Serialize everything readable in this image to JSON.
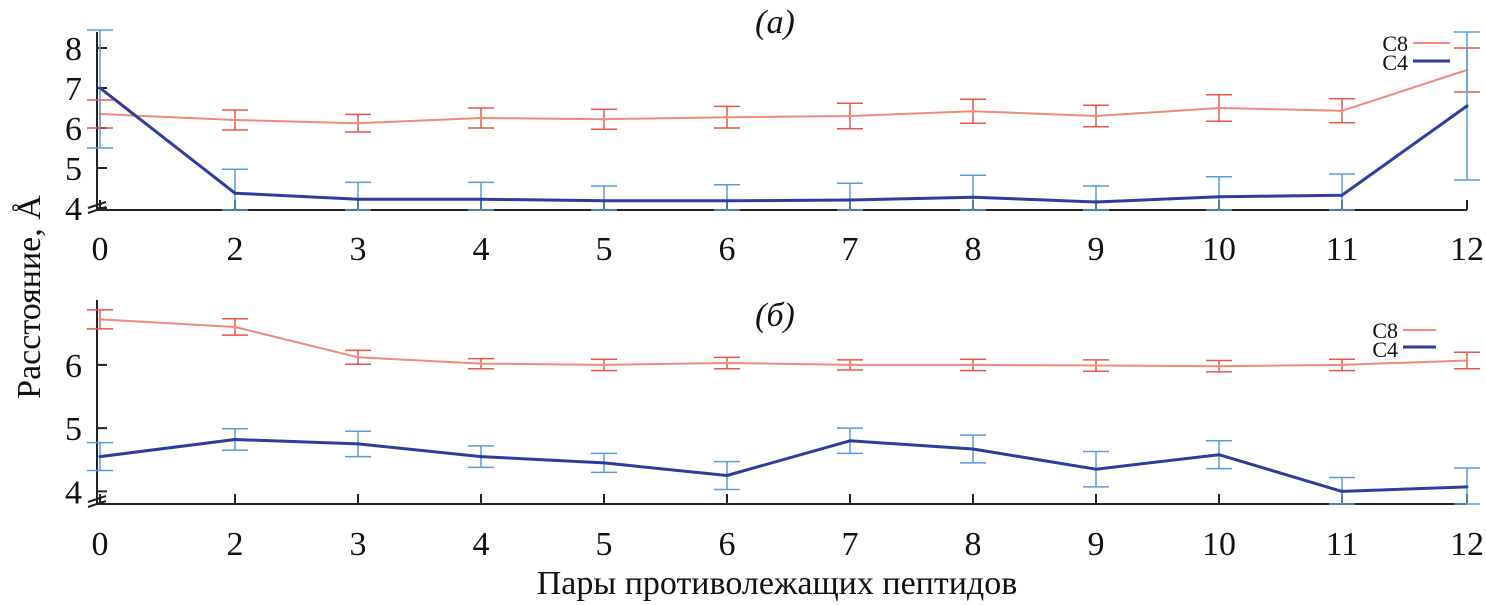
{
  "chart_data": {
    "type": "line",
    "xlabel": "Пары противолежащих пептидов",
    "ylabel": "Расстояние, Å",
    "categories": [
      "0",
      "2",
      "3",
      "4",
      "5",
      "6",
      "7",
      "8",
      "9",
      "10",
      "11",
      "12"
    ],
    "colors": {
      "C8": "#f08a7a",
      "C4": "#2e3d9c",
      "C8_err": "#e8564a",
      "C4_err": "#5a9ad8",
      "axis": "#222222"
    },
    "legend_placement": "top-right",
    "grid": false,
    "panels": [
      {
        "title": "(а)",
        "ylim": [
          3.95,
          8.2
        ],
        "yticks": [
          4,
          5,
          6,
          7,
          8
        ],
        "axis_break": true,
        "series": [
          {
            "name": "C8",
            "values": [
              6.35,
              6.2,
              6.12,
              6.25,
              6.22,
              6.27,
              6.3,
              6.42,
              6.3,
              6.5,
              6.43,
              7.45
            ],
            "errors": [
              0.35,
              0.25,
              0.22,
              0.25,
              0.25,
              0.27,
              0.32,
              0.3,
              0.27,
              0.33,
              0.3,
              0.55
            ]
          },
          {
            "name": "C4",
            "values": [
              7.0,
              4.37,
              4.22,
              4.22,
              4.18,
              4.18,
              4.2,
              4.27,
              4.15,
              4.28,
              4.32,
              6.55
            ],
            "errors": [
              1.5,
              0.6,
              0.42,
              0.42,
              0.37,
              0.4,
              0.42,
              0.55,
              0.4,
              0.5,
              0.53,
              1.85
            ]
          }
        ]
      },
      {
        "title": "(б)",
        "ylim": [
          3.8,
          6.9
        ],
        "yticks": [
          4,
          5,
          6
        ],
        "axis_break": true,
        "series": [
          {
            "name": "C8",
            "values": [
              6.72,
              6.6,
              6.12,
              6.02,
              6.0,
              6.03,
              6.0,
              6.0,
              5.99,
              5.98,
              6.0,
              6.07
            ],
            "errors": [
              0.15,
              0.13,
              0.11,
              0.08,
              0.09,
              0.09,
              0.08,
              0.09,
              0.09,
              0.09,
              0.09,
              0.13
            ]
          },
          {
            "name": "C4",
            "values": [
              4.55,
              4.82,
              4.75,
              4.55,
              4.45,
              4.25,
              4.8,
              4.67,
              4.35,
              4.58,
              4.0,
              4.07
            ],
            "errors": [
              0.22,
              0.17,
              0.2,
              0.17,
              0.15,
              0.22,
              0.2,
              0.22,
              0.28,
              0.22,
              0.22,
              0.3
            ]
          }
        ]
      }
    ]
  }
}
